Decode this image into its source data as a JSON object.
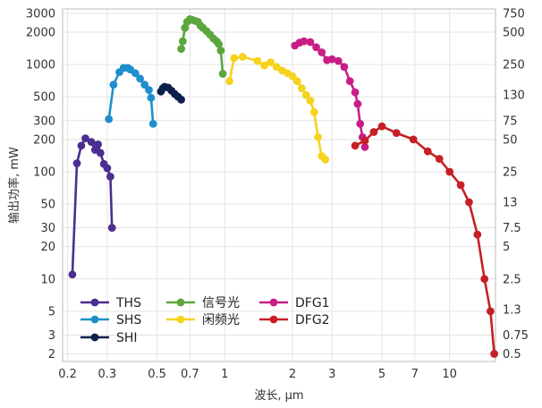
{
  "chart_data": {
    "type": "line",
    "xlabel": "波长, µm",
    "ylabel": "输出功率, mW",
    "x_scale": "log",
    "y_scale": "log",
    "xlim": [
      0.19,
      16
    ],
    "ylim": [
      1.7,
      3300
    ],
    "grid": true,
    "legend_placement": "bottom-left",
    "x_ticks": [
      {
        "value": 0.2,
        "label": "0.2"
      },
      {
        "value": 0.3,
        "label": "0.3"
      },
      {
        "value": 0.5,
        "label": "0.5"
      },
      {
        "value": 0.7,
        "label": "0.7"
      },
      {
        "value": 1,
        "label": "1"
      },
      {
        "value": 2,
        "label": "2"
      },
      {
        "value": 3,
        "label": "3"
      },
      {
        "value": 5,
        "label": "5"
      },
      {
        "value": 7,
        "label": "7"
      },
      {
        "value": 10,
        "label": "10"
      }
    ],
    "y_ticks": [
      {
        "value": 2,
        "label": "2"
      },
      {
        "value": 3,
        "label": "3"
      },
      {
        "value": 5,
        "label": "5"
      },
      {
        "value": 10,
        "label": "10"
      },
      {
        "value": 20,
        "label": "20"
      },
      {
        "value": 30,
        "label": "30"
      },
      {
        "value": 50,
        "label": "50"
      },
      {
        "value": 100,
        "label": "100"
      },
      {
        "value": 200,
        "label": "200"
      },
      {
        "value": 300,
        "label": "300"
      },
      {
        "value": 500,
        "label": "500"
      },
      {
        "value": 1000,
        "label": "1000"
      },
      {
        "value": 2000,
        "label": "2000"
      },
      {
        "value": 3000,
        "label": "3000"
      }
    ],
    "y_ticks_right": [
      {
        "value": 2,
        "label": "0.5"
      },
      {
        "value": 3,
        "label": "0.75"
      },
      {
        "value": 5.2,
        "label": "1.3"
      },
      {
        "value": 10,
        "label": "2.5"
      },
      {
        "value": 20,
        "label": "5"
      },
      {
        "value": 30,
        "label": "7.5"
      },
      {
        "value": 52,
        "label": "13"
      },
      {
        "value": 100,
        "label": "25"
      },
      {
        "value": 200,
        "label": "50"
      },
      {
        "value": 300,
        "label": "75"
      },
      {
        "value": 520,
        "label": "130"
      },
      {
        "value": 1000,
        "label": "250"
      },
      {
        "value": 2000,
        "label": "500"
      },
      {
        "value": 3000,
        "label": "750"
      }
    ],
    "series": [
      {
        "name": "THS",
        "color": "#4b2e8f",
        "points": [
          [
            0.21,
            11
          ],
          [
            0.22,
            120
          ],
          [
            0.23,
            175
          ],
          [
            0.24,
            205
          ],
          [
            0.255,
            190
          ],
          [
            0.265,
            160
          ],
          [
            0.273,
            180
          ],
          [
            0.28,
            150
          ],
          [
            0.29,
            118
          ],
          [
            0.3,
            108
          ],
          [
            0.31,
            90
          ],
          [
            0.315,
            30
          ]
        ]
      },
      {
        "name": "SHS",
        "color": "#1e8fcc",
        "points": [
          [
            0.305,
            310
          ],
          [
            0.32,
            650
          ],
          [
            0.34,
            850
          ],
          [
            0.355,
            930
          ],
          [
            0.37,
            930
          ],
          [
            0.38,
            900
          ],
          [
            0.4,
            830
          ],
          [
            0.42,
            740
          ],
          [
            0.44,
            650
          ],
          [
            0.46,
            580
          ],
          [
            0.47,
            490
          ],
          [
            0.48,
            280
          ]
        ]
      },
      {
        "name": "SHI",
        "color": "#0b1f4a",
        "points": [
          [
            0.52,
            560
          ],
          [
            0.53,
            600
          ],
          [
            0.54,
            620
          ],
          [
            0.56,
            610
          ],
          [
            0.58,
            570
          ],
          [
            0.6,
            530
          ],
          [
            0.62,
            500
          ],
          [
            0.64,
            470
          ]
        ]
      },
      {
        "name": "信号光",
        "color": "#5aa63f",
        "points": [
          [
            0.64,
            1400
          ],
          [
            0.65,
            1650
          ],
          [
            0.665,
            2200
          ],
          [
            0.68,
            2500
          ],
          [
            0.7,
            2650
          ],
          [
            0.72,
            2600
          ],
          [
            0.74,
            2550
          ],
          [
            0.76,
            2500
          ],
          [
            0.78,
            2300
          ],
          [
            0.8,
            2200
          ],
          [
            0.83,
            2050
          ],
          [
            0.86,
            1900
          ],
          [
            0.89,
            1750
          ],
          [
            0.92,
            1650
          ],
          [
            0.94,
            1550
          ],
          [
            0.96,
            1350
          ],
          [
            0.98,
            820
          ]
        ]
      },
      {
        "name": "闲频光",
        "color": "#f5d31e",
        "points": [
          [
            1.05,
            700
          ],
          [
            1.1,
            1150
          ],
          [
            1.2,
            1180
          ],
          [
            1.4,
            1080
          ],
          [
            1.5,
            980
          ],
          [
            1.6,
            1050
          ],
          [
            1.7,
            950
          ],
          [
            1.8,
            880
          ],
          [
            1.9,
            830
          ],
          [
            2.0,
            780
          ],
          [
            2.1,
            700
          ],
          [
            2.2,
            600
          ],
          [
            2.3,
            520
          ],
          [
            2.4,
            460
          ],
          [
            2.5,
            360
          ],
          [
            2.6,
            210
          ],
          [
            2.7,
            140
          ],
          [
            2.8,
            130
          ]
        ]
      },
      {
        "name": "DFG1",
        "color": "#c81d87",
        "points": [
          [
            2.05,
            1500
          ],
          [
            2.15,
            1600
          ],
          [
            2.25,
            1650
          ],
          [
            2.4,
            1620
          ],
          [
            2.55,
            1450
          ],
          [
            2.7,
            1300
          ],
          [
            2.85,
            1100
          ],
          [
            3.0,
            1120
          ],
          [
            3.2,
            1080
          ],
          [
            3.4,
            950
          ],
          [
            3.6,
            700
          ],
          [
            3.8,
            550
          ],
          [
            3.9,
            430
          ],
          [
            4.0,
            280
          ],
          [
            4.1,
            210
          ],
          [
            4.2,
            170
          ]
        ]
      },
      {
        "name": "DFG2",
        "color": "#c62026",
        "points": [
          [
            3.8,
            175
          ],
          [
            4.2,
            195
          ],
          [
            4.6,
            235
          ],
          [
            5.0,
            265
          ],
          [
            5.8,
            230
          ],
          [
            6.9,
            200
          ],
          [
            8.0,
            155
          ],
          [
            9.0,
            132
          ],
          [
            10.0,
            100
          ],
          [
            11.2,
            75
          ],
          [
            12.2,
            52
          ],
          [
            13.3,
            26
          ],
          [
            14.3,
            10
          ],
          [
            15.2,
            5
          ],
          [
            15.8,
            2
          ]
        ]
      }
    ]
  }
}
